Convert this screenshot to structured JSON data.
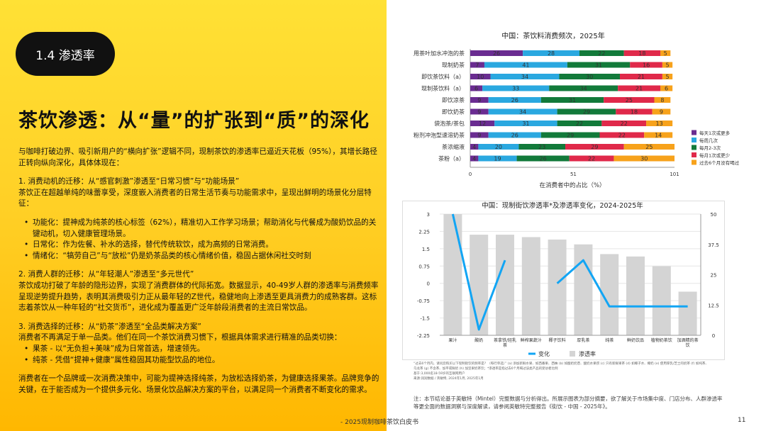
{
  "section": {
    "label": "1.4 渗透率"
  },
  "headline": "茶饮渗透：从“量”的扩张到“质”的深化",
  "body": {
    "intro": "与咖啡打破边界、吸引新用户的“横向扩张”逻辑不同，现制茶饮的渗透率已逼近天花板（95%），其增长路径正转向纵向深化，具体体现在：",
    "s1_title": "1. 消费动机的迁移：从“感官刺激”渗透至“日常习惯”与“功能场景”",
    "s1_text": "茶饮正在超越单纯的味蕾享受，深度嵌入消费者的日常生活节奏与功能需求中，呈现出鲜明的场景化分层特征：",
    "s1_bullets": [
      "功能化：提神成为纯茶的核心标签（62%），精准切入工作学习场景；帮助消化与代餐成为酸奶饮品的关键动机，切入健康管理场景。",
      "日常化：作为佐餐、补水的选择，替代传统软饮，成为高频的日常消费。",
      "情绪化：“犒劳自己”与“放松”仍是奶茶品类的核心情绪价值，稳固占据休闲社交时刻"
    ],
    "s2_title": "2. 消费人群的迁移：从“年轻潮人”渗透至“多元世代”",
    "s2_text": "茶饮成功打破了年龄的隐形边界，实现了消费群体的代际拓宽。数据显示，40-49岁人群的渗透率与消费频率呈现逆势提升趋势，表明其消费吸引力正从最年轻的Z世代，稳健地向上渗透至更具消费力的成熟客群。这标志着茶饮从一种年轻的“社交货币”，进化成为覆盖更广泛年龄段消费者的主流日常饮品。",
    "s3_title": "3. 消费选择的迁移：从“奶茶”渗透至“全品类解决方案”",
    "s3_text": "消费者不再满足于单一品类。他们在同一个茶饮消费习惯下，根据具体需求进行精准的品类切换：",
    "s3_bullets": [
      "果茶 - 以“无负担+美味”成为日常首选，增速领先。",
      "纯茶 - 凭借“提神+健康”属性稳固其功能型饮品的地位。"
    ],
    "closing": "消费者在一个品牌或一次消费决策中，可能为提神选择纯茶，为放松选择奶茶，为健康选择果茶。品牌竞争的关键，在于能否成为一个提供多元化、场景化饮品解决方案的平台，以满足同一个消费者不断变化的需求。"
  },
  "footnote": {
    "lines": [
      "“过去6个月内，请问您购买以下现制街饮的频率是？（每行单选）” (a) 添加新鲜水果、如西番果、西柚 (b) 如酸奶奶昔、酸奶水果捞 (c) 只有新鲜果茶 (d) 如椰子水、椰奶 (e) 使用厚乳/芝士的奶茶 (f) 如纯茶、乌龙茶 (g) 不含茶、加平或鲜奶 (h) 加坚果奶茶饮；*渗透率是指过去6个月喝过该类产品的受访者比例",
      "基于:3,000名18-59岁的互联网用户",
      "来源:润润数据 / 英敏特, 2024年1月, 2025年1月"
    ]
  },
  "note": "注：本节结论基于英敏特（Mintel）完整数据与分析得出。所展示图表为部分摘要，欲了解关于市场集中度、门店分布、人群渗透率等更全面的数据洞察与深度解读，请参阅英敏特完整报告《街饮 - 中国 - 2025年》。",
  "footer": "- 2025现制咖啡茶饮白皮书",
  "page_number": "11",
  "chart_data": [
    {
      "type": "bar",
      "orientation": "horizontal",
      "stacked": true,
      "title": "中国：茶饮料消费频次，2025年",
      "xlabel": "在消费者中的占比（%）",
      "xlim": [
        0,
        101
      ],
      "xticks": [
        "0",
        "51",
        "101"
      ],
      "legend_position": "right",
      "categories": [
        "用茶叶加水冲泡的茶",
        "现制奶茶",
        "即饮茶饮料（a）",
        "现制茶饮料（a）",
        "即饮凉茶",
        "即饮奶茶",
        "袋泡茶/茶包",
        "粉剂冲泡型速溶奶茶",
        "茶浓缩液",
        "茶粉（a）"
      ],
      "series": [
        {
          "name": "每天1次或更多",
          "color": "#6a2c91",
          "values": [
            26,
            7,
            10,
            6,
            9,
            9,
            12,
            9,
            4,
            4
          ]
        },
        {
          "name": "每周几次",
          "color": "#2aa8e0",
          "values": [
            28,
            41,
            34,
            33,
            26,
            34,
            31,
            26,
            20,
            19
          ]
        },
        {
          "name": "每月2-3次",
          "color": "#127a3a",
          "values": [
            22,
            31,
            30,
            34,
            31,
            29,
            22,
            29,
            23,
            26
          ]
        },
        {
          "name": "每月1次或更少",
          "color": "#e0294a",
          "values": [
            18,
            16,
            21,
            21,
            25,
            18,
            22,
            22,
            29,
            22
          ]
        },
        {
          "name": "过去6个月没有喝过",
          "color": "#f7a21b",
          "values": [
            5,
            5,
            5,
            6,
            8,
            9,
            13,
            14,
            25,
            30
          ]
        }
      ]
    },
    {
      "type": "bar+line",
      "title": "中国：现制街饮渗透率*及渗透率变化，2024-2025年",
      "categories": [
        "果汁",
        "酸奶",
        "茶拿铁/轻乳茶",
        "鲜榨果蔬汁",
        "椰子饮料",
        "厚乳茶",
        "纯茶",
        "鲜奶饮品",
        "植物奶茶饮",
        "加酒精的茶饮"
      ],
      "left_axis": {
        "ylim": [
          -2.25,
          3
        ],
        "ticks": [
          "3",
          "2.25",
          "1.5",
          "0.75",
          "0",
          "-0.75",
          "-1.5",
          "-2.25"
        ]
      },
      "right_axis": {
        "ylim": [
          0,
          50
        ],
        "ticks": [
          "50",
          "37.5",
          "25",
          "12.5",
          "0"
        ]
      },
      "legend_position": "bottom",
      "series": [
        {
          "name": "变化",
          "type": "line",
          "axis": "left",
          "color": "#12a5f4",
          "values": [
            3,
            -2,
            1,
            null,
            0,
            1,
            -1,
            -1,
            -1,
            -1
          ]
        },
        {
          "name": "渗透率",
          "type": "bar",
          "axis": "right",
          "color": "#d4d4d4",
          "values": [
            50,
            41.5,
            41.5,
            40.5,
            39.5,
            37.5,
            33.5,
            32.5,
            28.5,
            18
          ]
        }
      ]
    }
  ]
}
